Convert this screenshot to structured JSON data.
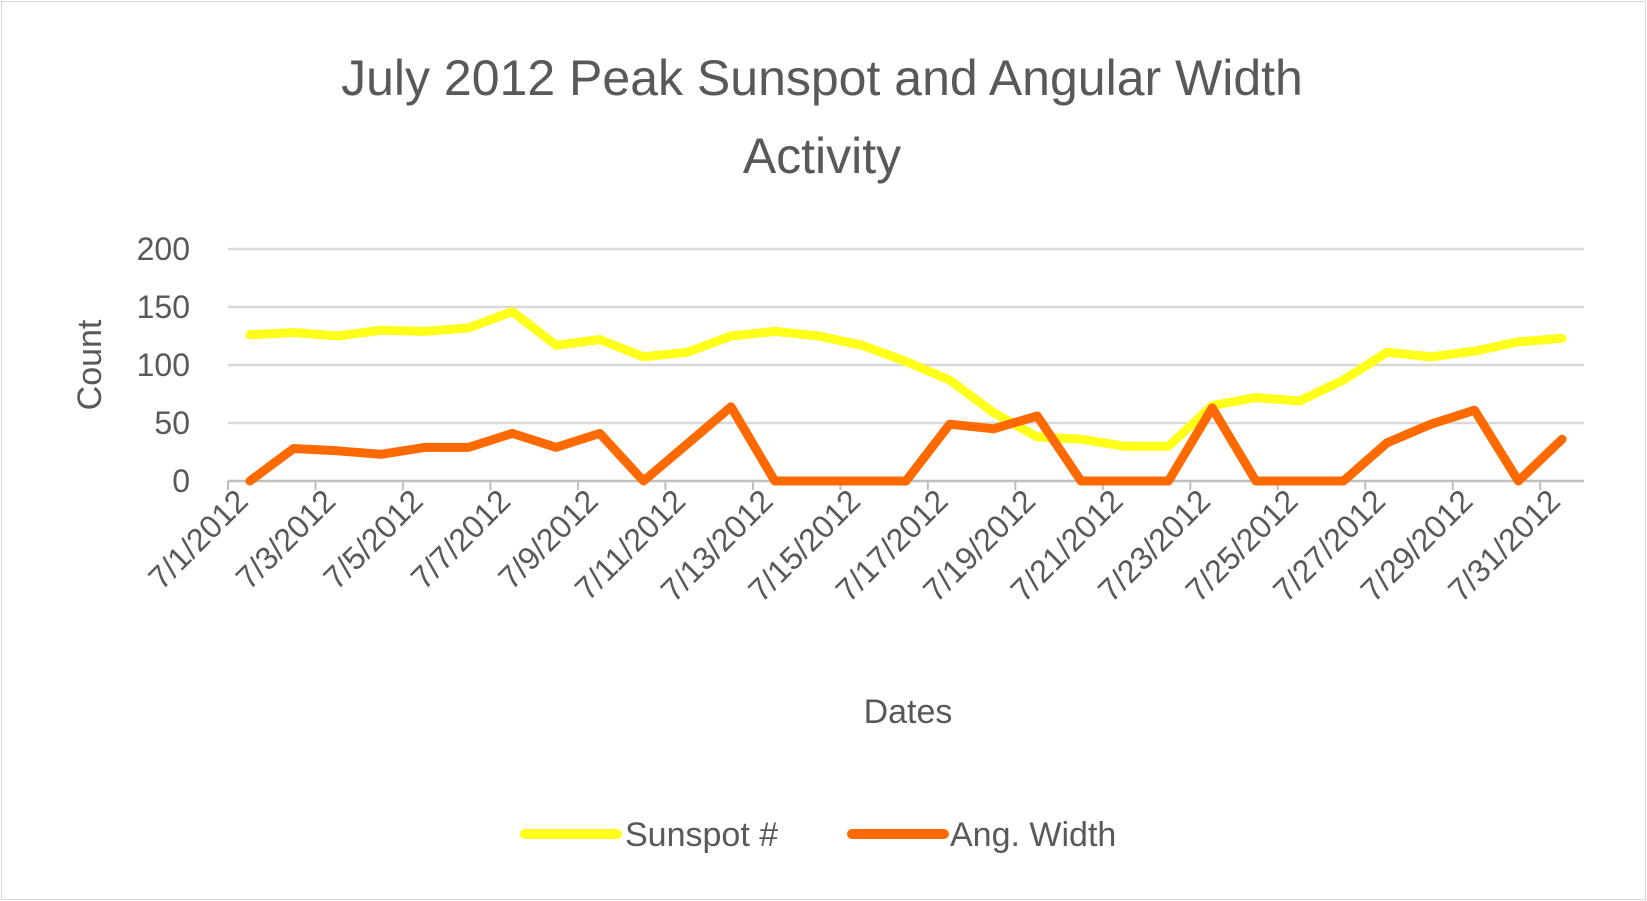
{
  "chart_data": {
    "type": "line",
    "title_line1": "July 2012 Peak Sunspot and Angular Width",
    "title_line2": "Activity",
    "xlabel": "Dates",
    "ylabel": "Count",
    "ylim": [
      0,
      200
    ],
    "yticks": [
      "0",
      "50",
      "100",
      "150",
      "200"
    ],
    "grid": true,
    "legend_position": "bottom",
    "categories": [
      "7/1/2012",
      "7/2/2012",
      "7/3/2012",
      "7/4/2012",
      "7/5/2012",
      "7/6/2012",
      "7/7/2012",
      "7/8/2012",
      "7/9/2012",
      "7/10/2012",
      "7/11/2012",
      "7/12/2012",
      "7/13/2012",
      "7/14/2012",
      "7/15/2012",
      "7/16/2012",
      "7/17/2012",
      "7/18/2012",
      "7/19/2012",
      "7/20/2012",
      "7/21/2012",
      "7/22/2012",
      "7/23/2012",
      "7/24/2012",
      "7/25/2012",
      "7/26/2012",
      "7/27/2012",
      "7/28/2012",
      "7/29/2012",
      "7/30/2012",
      "7/31/2012"
    ],
    "tick_labels": [
      "7/1/2012",
      "7/3/2012",
      "7/5/2012",
      "7/7/2012",
      "7/9/2012",
      "7/11/2012",
      "7/13/2012",
      "7/15/2012",
      "7/17/2012",
      "7/19/2012",
      "7/21/2012",
      "7/23/2012",
      "7/25/2012",
      "7/27/2012",
      "7/29/2012",
      "7/31/2012"
    ],
    "series": [
      {
        "name": "Sunspot #",
        "color": "#ffff1a",
        "values": [
          126,
          128,
          125,
          130,
          129,
          132,
          146,
          117,
          122,
          107,
          111,
          125,
          129,
          125,
          117,
          103,
          87,
          59,
          38,
          36,
          30,
          30,
          65,
          72,
          69,
          87,
          111,
          107,
          112,
          120,
          123
        ]
      },
      {
        "name": "Ang. Width",
        "color": "#ff6a00",
        "values": [
          0,
          28,
          26,
          23,
          29,
          29,
          41,
          29,
          41,
          0,
          32,
          64,
          0,
          0,
          0,
          0,
          49,
          45,
          56,
          0,
          0,
          0,
          63,
          0,
          0,
          0,
          33,
          49,
          61,
          0,
          36
        ]
      }
    ]
  }
}
